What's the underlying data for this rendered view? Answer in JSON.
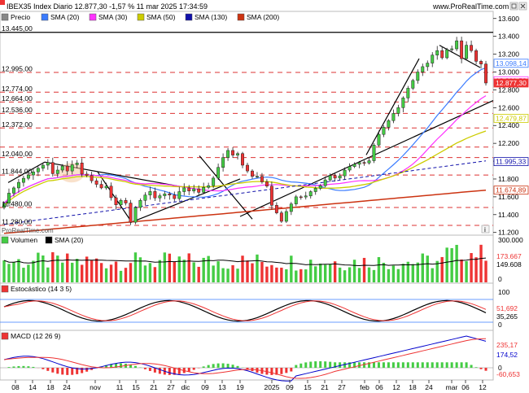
{
  "header": {
    "title": "IBEX35 Index Diario 12.877,30 -1,57 % 11 mar 2025 17:34:59",
    "site": "www.ProRealTime.com",
    "watermark": "ProRealTime.com"
  },
  "colors": {
    "up": "#44cc44",
    "down": "#ee3333",
    "sma20": "#3a7bff",
    "sma30": "#ff33ff",
    "sma50": "#cccc00",
    "sma130": "#1010aa",
    "sma200": "#cc3311",
    "level_line": "#dd3333",
    "trend_line": "#000000"
  },
  "price_panel": {
    "legend": [
      {
        "label": "Precio",
        "color": "#888888"
      },
      {
        "label": "SMA (20)",
        "color": "#3a7bff"
      },
      {
        "label": "SMA (30)",
        "color": "#ff33ff"
      },
      {
        "label": "SMA (50)",
        "color": "#cccc00"
      },
      {
        "label": "SMA (130)",
        "color": "#1010aa"
      },
      {
        "label": "SMA (200)",
        "color": "#cc3311"
      }
    ],
    "y_ticks": [
      "13.600",
      "13.400",
      "13.200",
      "13.000",
      "12.800",
      "12.600",
      "12.400",
      "12.200",
      "12.000",
      "11.800",
      "11.600",
      "11.400",
      "11.200"
    ],
    "levels": [
      {
        "value": 13445,
        "label": "13.445,00",
        "solid": true
      },
      {
        "value": 12995,
        "label": "12.995,00"
      },
      {
        "value": 12774,
        "label": "12.774,00"
      },
      {
        "value": 12664,
        "label": "12.664,00"
      },
      {
        "value": 12536,
        "label": "12.536,00"
      },
      {
        "value": 12372,
        "label": "12.372,00"
      },
      {
        "value": 12158,
        "label": ""
      },
      {
        "value": 12040,
        "label": "12.040,00"
      },
      {
        "value": 11844,
        "label": "11.844,00"
      },
      {
        "value": 11480,
        "label": "11.480,00"
      },
      {
        "value": 11280,
        "label": "11.280,00"
      }
    ],
    "tags": [
      {
        "label": "13.098,14",
        "color": "#3a7bff"
      },
      {
        "label": "12.901,59",
        "color": "#ff33ff"
      },
      {
        "label": "12.877,30",
        "color": "#ee3333"
      },
      {
        "label": "12.479,87",
        "color": "#cccc00"
      },
      {
        "label": "11.995,33",
        "color": "#1010aa"
      },
      {
        "label": "11.674,89",
        "color": "#cc3311"
      }
    ]
  },
  "volume_panel": {
    "legend": [
      {
        "label": "Volumen",
        "color": "#44cc44"
      },
      {
        "label": "SMA (20)",
        "color": "#000000"
      }
    ],
    "y_ticks": [
      "300.000",
      "0"
    ],
    "tags": [
      "173.667",
      "149.608"
    ]
  },
  "stoch_panel": {
    "legend": [
      {
        "label": "Estocástico (14 3 5)",
        "color": "#ee3333"
      }
    ],
    "y_ticks": [
      "100",
      "0"
    ],
    "tags": [
      "51,692",
      "35,265"
    ]
  },
  "macd_panel": {
    "legend": [
      {
        "label": "MACD (12 26 9)",
        "color": "#ee3333"
      }
    ],
    "y_ticks": [
      "0"
    ],
    "tags": [
      "235,17",
      "174,52",
      "-60,653"
    ]
  },
  "x_axis": {
    "labels": [
      "08",
      "14",
      "18",
      "24",
      "nov",
      "11",
      "15",
      "21",
      "27",
      "dic",
      "09",
      "13",
      "19",
      "2025",
      "09",
      "15",
      "21",
      "27",
      "feb",
      "06",
      "12",
      "18",
      "24",
      "mar",
      "06",
      "12"
    ]
  },
  "chart_data": {
    "type": "candlestick",
    "title": "IBEX35 Index Diario",
    "ylim": [
      11170,
      13680
    ],
    "close": [
      11528,
      11641,
      11700,
      11762,
      11808,
      11845,
      11880,
      11920,
      11955,
      11985,
      11860,
      11900,
      11945,
      11890,
      11960,
      11980,
      11855,
      11840,
      11780,
      11740,
      11700,
      11720,
      11590,
      11510,
      11560,
      11530,
      11315,
      11480,
      11560,
      11620,
      11660,
      11588,
      11612,
      11633,
      11620,
      11580,
      11658,
      11700,
      11665,
      11690,
      11650,
      11706,
      11725,
      11810,
      11930,
      12040,
      12120,
      12068,
      12085,
      11955,
      11890,
      11830,
      11830,
      11768,
      11720,
      11505,
      11420,
      11325,
      11435,
      11520,
      11600,
      11598,
      11610,
      11658,
      11696,
      11725,
      11790,
      11838,
      11810,
      11835,
      11900,
      11940,
      11965,
      11985,
      11980,
      12005,
      12180,
      12300,
      12380,
      12455,
      12535,
      12600,
      12709,
      12818,
      12905,
      13000,
      13060,
      13100,
      13190,
      13240,
      13160,
      13250,
      13260,
      13350,
      13150,
      13300,
      13240,
      13120,
      13090,
      12877
    ]
  }
}
